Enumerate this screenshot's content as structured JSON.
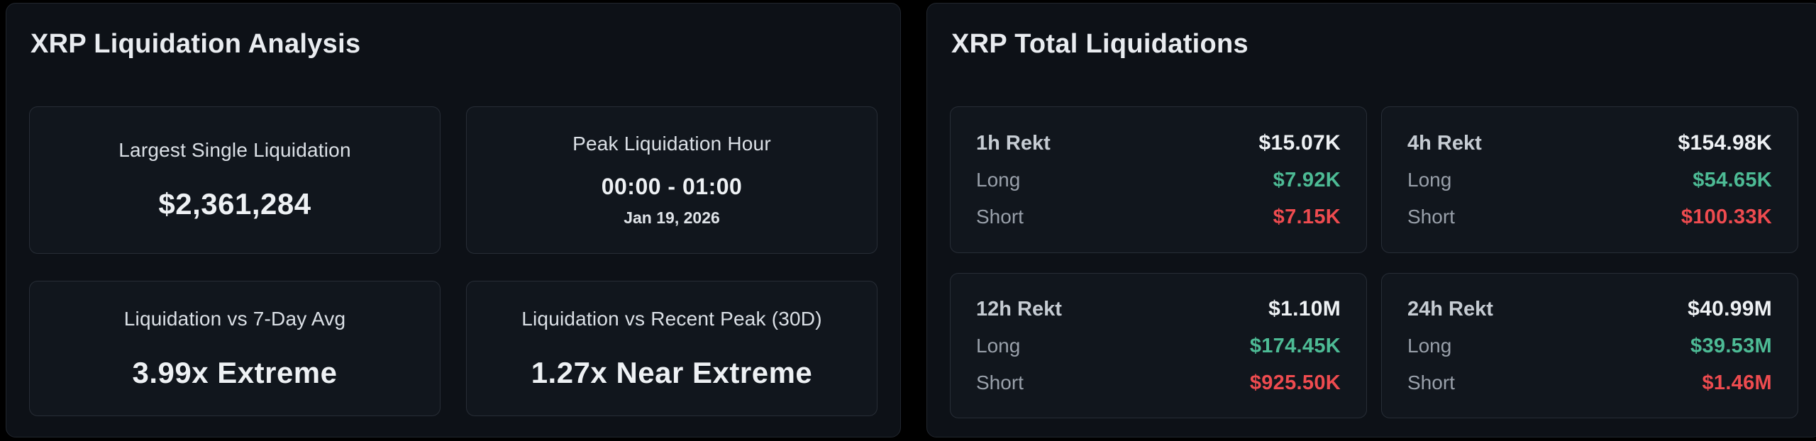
{
  "colors": {
    "long_green": "#4dbb95",
    "short_red": "#ee4b4f",
    "panel_bg": "#0d1117",
    "card_bg": "#11161d"
  },
  "analysis_panel": {
    "title": "XRP Liquidation Analysis",
    "cards": [
      {
        "label": "Largest Single Liquidation",
        "value": "$2,361,284"
      },
      {
        "label": "Peak Liquidation Hour",
        "value": "00:00 - 01:00",
        "date": "Jan 19, 2026"
      },
      {
        "label": "Liquidation vs 7-Day Avg",
        "value": "3.99x Extreme"
      },
      {
        "label": "Liquidation vs Recent Peak (30D)",
        "value": "1.27x Near Extreme"
      }
    ]
  },
  "totals_panel": {
    "title": "XRP Total Liquidations",
    "long_label": "Long",
    "short_label": "Short",
    "cards": [
      {
        "label": "1h Rekt",
        "total": "$15.07K",
        "long": "$7.92K",
        "short": "$7.15K"
      },
      {
        "label": "4h Rekt",
        "total": "$154.98K",
        "long": "$54.65K",
        "short": "$100.33K"
      },
      {
        "label": "12h Rekt",
        "total": "$1.10M",
        "long": "$174.45K",
        "short": "$925.50K"
      },
      {
        "label": "24h Rekt",
        "total": "$40.99M",
        "long": "$39.53M",
        "short": "$1.46M"
      }
    ]
  }
}
